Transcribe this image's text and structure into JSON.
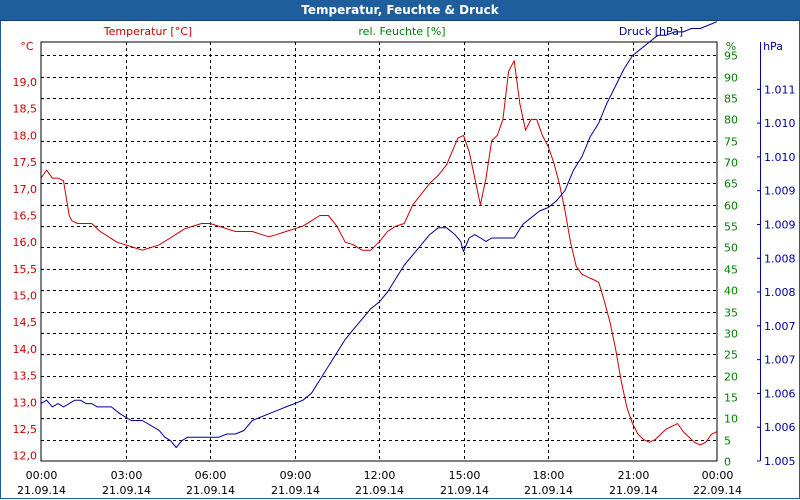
{
  "window": {
    "title": "Temperatur, Feuchte & Druck"
  },
  "colors": {
    "temperature": "#cc0000",
    "humidity": "#008000",
    "pressure": "#000099",
    "title_bar": "#1f5e9c",
    "grid": "#000000"
  },
  "chart_data": {
    "type": "line",
    "title": "Temperatur, Feuchte & Druck",
    "grid": true,
    "x": {
      "labels": [
        [
          "00:00",
          "21.09.14"
        ],
        [
          "03:00",
          "21.09.14"
        ],
        [
          "06:00",
          "21.09.14"
        ],
        [
          "09:00",
          "21.09.14"
        ],
        [
          "12:00",
          "21.09.14"
        ],
        [
          "15:00",
          "21.09.14"
        ],
        [
          "18:00",
          "21.09.14"
        ],
        [
          "21:00",
          "21.09.14"
        ],
        [
          "00:00",
          "22.09.14"
        ]
      ],
      "range_hours": [
        0,
        24
      ]
    },
    "axes": {
      "temperature": {
        "label": "Temperatur [°C]",
        "unit": "°C",
        "range": [
          11.9,
          19.75
        ],
        "ticks": [
          "12,0",
          "12,5",
          "13,0",
          "13,5",
          "14,0",
          "14,5",
          "15,0",
          "15,5",
          "16,0",
          "16,5",
          "17,0",
          "17,5",
          "18,0",
          "18,5",
          "19,0"
        ],
        "tick_values": [
          12.0,
          12.5,
          13.0,
          13.5,
          14.0,
          14.5,
          15.0,
          15.5,
          16.0,
          16.5,
          17.0,
          17.5,
          18.0,
          18.5,
          19.0
        ]
      },
      "humidity": {
        "label": "rel. Feuchte [%]",
        "unit": "%",
        "range": [
          0,
          98.1
        ],
        "ticks": [
          "0",
          "5",
          "10",
          "15",
          "20",
          "25",
          "30",
          "35",
          "40",
          "45",
          "50",
          "55",
          "60",
          "65",
          "70",
          "75",
          "80",
          "85",
          "90",
          "95"
        ],
        "tick_values": [
          0,
          5,
          10,
          15,
          20,
          25,
          30,
          35,
          40,
          45,
          50,
          55,
          60,
          65,
          70,
          75,
          80,
          85,
          90,
          95
        ]
      },
      "pressure": {
        "label": "Druck [hPa]",
        "unit": "hPa",
        "range": [
          1005.0,
          1011.2
        ],
        "ticks": [
          "1.005",
          "1.006",
          "1.006",
          "1.007",
          "1.007",
          "1.008",
          "1.008",
          "1.009",
          "1.009",
          "1.010",
          "1.010",
          "1.011"
        ],
        "tick_values": [
          1005.0,
          1005.5,
          1006.0,
          1006.5,
          1007.0,
          1007.5,
          1008.0,
          1008.5,
          1009.0,
          1009.5,
          1010.0,
          1010.5
        ]
      }
    },
    "series": [
      {
        "name": "Temperatur",
        "axis": "temperature",
        "x": [
          0,
          0.2,
          0.4,
          0.6,
          0.8,
          1.0,
          1.1,
          1.3,
          1.5,
          1.8,
          2.1,
          2.4,
          2.7,
          3.0,
          3.3,
          3.6,
          3.9,
          4.2,
          4.5,
          4.8,
          5.1,
          5.4,
          5.7,
          6.0,
          6.3,
          6.6,
          6.9,
          7.2,
          7.5,
          7.8,
          8.1,
          8.4,
          8.7,
          9.0,
          9.3,
          9.6,
          9.9,
          10.2,
          10.5,
          10.8,
          11.1,
          11.4,
          11.7,
          12.0,
          12.3,
          12.6,
          12.9,
          13.2,
          13.5,
          13.8,
          14.1,
          14.4,
          14.6,
          14.8,
          15.0,
          15.2,
          15.4,
          15.6,
          15.8,
          16.0,
          16.2,
          16.4,
          16.6,
          16.8,
          17.0,
          17.2,
          17.4,
          17.6,
          17.8,
          18.0,
          18.2,
          18.4,
          18.6,
          18.8,
          19.0,
          19.2,
          19.4,
          19.6,
          19.8,
          20.0,
          20.2,
          20.4,
          20.6,
          20.8,
          21.0,
          21.2,
          21.4,
          21.6,
          21.8,
          22.0,
          22.2,
          22.4,
          22.6,
          22.8,
          23.0,
          23.2,
          23.4,
          23.6,
          23.8,
          24.0
        ],
        "values": [
          17.2,
          17.35,
          17.2,
          17.2,
          17.15,
          16.5,
          16.4,
          16.35,
          16.35,
          16.35,
          16.2,
          16.1,
          16.0,
          15.95,
          15.9,
          15.85,
          15.9,
          15.95,
          16.05,
          16.15,
          16.25,
          16.3,
          16.35,
          16.35,
          16.3,
          16.25,
          16.2,
          16.2,
          16.2,
          16.15,
          16.1,
          16.15,
          16.2,
          16.25,
          16.3,
          16.4,
          16.5,
          16.5,
          16.3,
          16.0,
          15.95,
          15.85,
          15.85,
          16.0,
          16.2,
          16.3,
          16.35,
          16.7,
          16.9,
          17.1,
          17.25,
          17.45,
          17.7,
          17.95,
          18.0,
          17.7,
          17.2,
          16.7,
          17.2,
          17.9,
          18.0,
          18.3,
          19.2,
          19.4,
          18.6,
          18.1,
          18.3,
          18.3,
          18.0,
          17.8,
          17.5,
          17.1,
          16.6,
          16.0,
          15.55,
          15.4,
          15.35,
          15.3,
          15.25,
          14.9,
          14.5,
          14.0,
          13.4,
          12.9,
          12.6,
          12.4,
          12.3,
          12.25,
          12.3,
          12.4,
          12.5,
          12.55,
          12.6,
          12.45,
          12.35,
          12.25,
          12.2,
          12.25,
          12.4,
          12.45
        ]
      },
      {
        "name": "Druck",
        "axis": "pressure",
        "x": [
          0,
          0.2,
          0.4,
          0.6,
          0.8,
          1.0,
          1.2,
          1.4,
          1.6,
          1.8,
          2.0,
          2.2,
          2.5,
          2.8,
          3.0,
          3.2,
          3.4,
          3.6,
          3.8,
          4.0,
          4.2,
          4.4,
          4.6,
          4.8,
          5.0,
          5.2,
          5.4,
          5.6,
          5.8,
          6.0,
          6.3,
          6.6,
          6.9,
          7.2,
          7.5,
          7.8,
          8.1,
          8.4,
          8.7,
          9.0,
          9.3,
          9.6,
          9.9,
          10.2,
          10.5,
          10.8,
          11.1,
          11.4,
          11.7,
          12.0,
          12.3,
          12.6,
          12.9,
          13.2,
          13.5,
          13.8,
          14.1,
          14.4,
          14.7,
          14.9,
          15.0,
          15.2,
          15.4,
          15.6,
          15.8,
          16.0,
          16.2,
          16.5,
          16.8,
          17.1,
          17.4,
          17.7,
          18.0,
          18.3,
          18.6,
          18.9,
          19.2,
          19.5,
          19.8,
          20.1,
          20.4,
          20.7,
          21.0,
          21.3,
          21.6,
          21.9,
          22.2,
          22.5,
          22.8,
          23.1,
          23.4,
          23.7,
          24.0
        ],
        "values": [
          1005.85,
          1005.9,
          1005.8,
          1005.85,
          1005.8,
          1005.85,
          1005.9,
          1005.9,
          1005.85,
          1005.85,
          1005.8,
          1005.8,
          1005.8,
          1005.7,
          1005.65,
          1005.6,
          1005.6,
          1005.6,
          1005.55,
          1005.5,
          1005.45,
          1005.35,
          1005.3,
          1005.2,
          1005.3,
          1005.35,
          1005.35,
          1005.35,
          1005.35,
          1005.35,
          1005.35,
          1005.4,
          1005.4,
          1005.45,
          1005.6,
          1005.65,
          1005.7,
          1005.75,
          1005.8,
          1005.85,
          1005.9,
          1006.0,
          1006.2,
          1006.4,
          1006.6,
          1006.8,
          1006.95,
          1007.1,
          1007.25,
          1007.35,
          1007.5,
          1007.7,
          1007.9,
          1008.05,
          1008.2,
          1008.35,
          1008.45,
          1008.45,
          1008.35,
          1008.25,
          1008.1,
          1008.3,
          1008.35,
          1008.3,
          1008.25,
          1008.3,
          1008.3,
          1008.3,
          1008.3,
          1008.5,
          1008.6,
          1008.7,
          1008.75,
          1008.85,
          1009.0,
          1009.3,
          1009.5,
          1009.8,
          1010.0,
          1010.3,
          1010.55,
          1010.8,
          1011.0,
          1011.1,
          1011.2,
          1011.3,
          1011.3,
          1011.35,
          1011.35,
          1011.4,
          1011.4,
          1011.45,
          1011.5
        ]
      }
    ]
  }
}
